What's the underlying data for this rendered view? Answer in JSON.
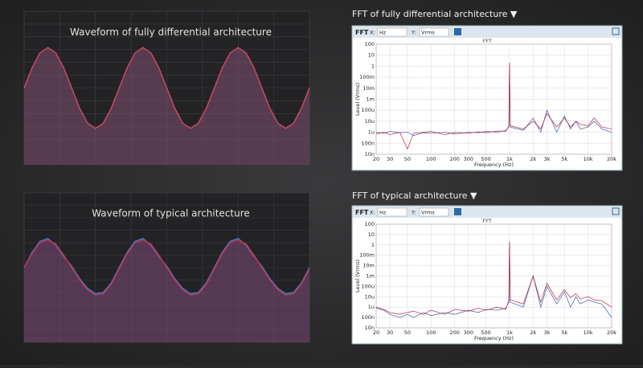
{
  "chart_data": [
    {
      "type": "area",
      "title": "Waveform of fully differential architecture",
      "ylim": [
        -1.9,
        1.9
      ],
      "series": [
        {
          "color": "#3b6fb0",
          "values": [
            0,
            0.5,
            0.87,
            1,
            0.87,
            0.5,
            0,
            -0.5,
            -0.87,
            -1,
            -0.87,
            -0.5,
            0,
            0.5,
            0.87,
            1,
            0.87,
            0.5,
            0,
            -0.5,
            -0.87,
            -1,
            -0.87,
            -0.5,
            0,
            0.5,
            0.87,
            1,
            0.87,
            0.5,
            0,
            -0.5,
            -0.87,
            -1,
            -0.87,
            -0.5,
            0
          ]
        },
        {
          "color": "#d0455a",
          "values": [
            0,
            0.5,
            0.87,
            1,
            0.87,
            0.5,
            0,
            -0.5,
            -0.87,
            -1,
            -0.87,
            -0.5,
            0,
            0.5,
            0.87,
            1,
            0.87,
            0.5,
            0,
            -0.5,
            -0.87,
            -1,
            -0.87,
            -0.5,
            0,
            0.5,
            0.87,
            1,
            0.87,
            0.5,
            0,
            -0.5,
            -0.87,
            -1,
            -0.87,
            -0.5,
            0
          ]
        }
      ]
    },
    {
      "type": "area",
      "title": "Waveform of typical architecture",
      "ylim": [
        -2.7,
        2.7
      ],
      "series": [
        {
          "color": "#3b7fd0",
          "values": [
            0,
            0.55,
            0.95,
            1.05,
            0.8,
            0.4,
            0.05,
            -0.4,
            -0.75,
            -0.95,
            -0.9,
            -0.55,
            0,
            0.55,
            0.95,
            1.05,
            0.8,
            0.4,
            0.05,
            -0.4,
            -0.75,
            -0.95,
            -0.9,
            -0.55,
            0,
            0.55,
            0.95,
            1.05,
            0.8,
            0.4,
            0.05,
            -0.4,
            -0.75,
            -0.95,
            -0.9,
            -0.55,
            0
          ]
        },
        {
          "color": "#c8304a",
          "values": [
            0,
            0.5,
            0.9,
            1,
            0.85,
            0.45,
            0,
            -0.45,
            -0.8,
            -1,
            -0.95,
            -0.6,
            -0.05,
            0.5,
            0.9,
            1,
            0.85,
            0.45,
            0,
            -0.45,
            -0.8,
            -1,
            -0.95,
            -0.6,
            -0.05,
            0.5,
            0.9,
            1,
            0.85,
            0.45,
            0,
            -0.45,
            -0.8,
            -1,
            -0.95,
            -0.6,
            -0.05
          ]
        }
      ]
    },
    {
      "type": "fft",
      "title": "FFT of fully differential architecture ▼",
      "toolbar": [
        "FFT",
        "X:",
        "Hz",
        "Y:",
        "Vrms"
      ],
      "plot_title": "FFT",
      "x_label": "Frequency (Hz)",
      "y_label": "Level (Vrms)",
      "log_x": true,
      "log_y": true,
      "grid": true,
      "xlim": [
        20,
        20000
      ],
      "ylim": [
        1e-08,
        100
      ],
      "xticks": [
        20,
        30,
        50,
        100,
        200,
        300,
        500,
        {
          "value": 1000,
          "label": "1k"
        },
        {
          "value": 2000,
          "label": "2k"
        },
        {
          "value": 3000,
          "label": "3k"
        },
        {
          "value": 5000,
          "label": "5k"
        },
        {
          "value": 10000,
          "label": "10k"
        },
        {
          "value": 20000,
          "label": "20k"
        }
      ],
      "yticks": [
        100,
        10,
        1,
        {
          "value": 0.1,
          "label": "100m"
        },
        {
          "value": 0.01,
          "label": "10m"
        },
        {
          "value": 0.001,
          "label": "1m"
        },
        {
          "value": 0.0001,
          "label": "100u"
        },
        {
          "value": 1e-05,
          "label": "10u"
        },
        {
          "value": 1e-06,
          "label": "1u"
        },
        {
          "value": 1e-07,
          "label": "100n"
        },
        {
          "value": 1e-08,
          "label": "10n"
        }
      ],
      "x": [
        20,
        25,
        30,
        40,
        50,
        60,
        80,
        100,
        150,
        200,
        300,
        400,
        500,
        700,
        900,
        980,
        1000,
        1020,
        1500,
        2000,
        2500,
        3000,
        4000,
        5000,
        6000,
        7000,
        8000,
        10000,
        12000,
        15000,
        20000
      ],
      "series": [
        {
          "color": "#3a5fb0",
          "values": [
            1e-06,
            8e-07,
            1.2e-06,
            9e-07,
            1e-06,
            5e-07,
            9e-07,
            8e-07,
            1e-06,
            7e-07,
            1e-06,
            9e-07,
            1.2e-06,
            1e-06,
            1.5e-06,
            3e-06,
            2,
            3e-06,
            1.5e-06,
            2e-05,
            1e-06,
            0.0001,
            1e-06,
            3e-05,
            2e-06,
            1e-05,
            2e-06,
            3e-06,
            1e-05,
            2e-06,
            1e-06
          ]
        },
        {
          "color": "#c0283c",
          "values": [
            7e-07,
            1e-06,
            6e-07,
            1e-06,
            3e-08,
            8e-07,
            1e-06,
            1.2e-06,
            6e-07,
            1e-06,
            8e-07,
            1.1e-06,
            9e-07,
            1.3e-06,
            1.2e-06,
            4e-06,
            2,
            4e-06,
            2e-06,
            1e-05,
            2e-06,
            5e-05,
            3e-06,
            2e-05,
            3e-06,
            1e-05,
            5e-06,
            4e-06,
            2e-05,
            3e-06,
            2e-06
          ]
        }
      ]
    },
    {
      "type": "fft",
      "title": "FFT of typical architecture ▼",
      "toolbar": [
        "FFT",
        "X:",
        "Hz",
        "Y:",
        "Vrms"
      ],
      "plot_title": "FFT",
      "x_label": "Frequency (Hz)",
      "y_label": "Level (Vrms)",
      "log_x": true,
      "log_y": true,
      "grid": true,
      "xlim": [
        20,
        20000
      ],
      "ylim": [
        1e-08,
        100
      ],
      "xticks": [
        20,
        30,
        50,
        100,
        200,
        300,
        500,
        {
          "value": 1000,
          "label": "1k"
        },
        {
          "value": 2000,
          "label": "2k"
        },
        {
          "value": 3000,
          "label": "3k"
        },
        {
          "value": 5000,
          "label": "5k"
        },
        {
          "value": 10000,
          "label": "10k"
        },
        {
          "value": 20000,
          "label": "20k"
        }
      ],
      "yticks": [
        100,
        10,
        1,
        {
          "value": 0.1,
          "label": "100m"
        },
        {
          "value": 0.01,
          "label": "10m"
        },
        {
          "value": 0.001,
          "label": "1m"
        },
        {
          "value": 0.0001,
          "label": "100u"
        },
        {
          "value": 1e-05,
          "label": "10u"
        },
        {
          "value": 1e-06,
          "label": "1u"
        },
        {
          "value": 1e-07,
          "label": "100n"
        },
        {
          "value": 1e-08,
          "label": "10n"
        }
      ],
      "x": [
        20,
        25,
        30,
        40,
        50,
        60,
        80,
        100,
        150,
        200,
        300,
        400,
        500,
        700,
        900,
        980,
        1000,
        1020,
        1500,
        2000,
        2500,
        3000,
        4000,
        5000,
        6000,
        7000,
        8000,
        10000,
        12000,
        15000,
        20000
      ],
      "series": [
        {
          "color": "#3a5fb0",
          "values": [
            8e-07,
            5e-07,
            2e-07,
            1e-07,
            2e-07,
            1e-07,
            3e-07,
            1.5e-07,
            3e-07,
            2e-07,
            5e-07,
            3e-07,
            6e-07,
            5e-07,
            8e-07,
            3e-06,
            2,
            3e-06,
            1e-06,
            0.001,
            1e-06,
            0.0001,
            2e-06,
            3e-05,
            1e-06,
            1e-05,
            2e-06,
            5e-06,
            3e-06,
            2e-06,
            1e-07
          ]
        },
        {
          "color": "#c0283c",
          "values": [
            1e-06,
            6e-07,
            3e-07,
            2e-07,
            3e-07,
            4e-07,
            2e-07,
            5e-07,
            2e-07,
            6e-07,
            4e-07,
            8e-07,
            5e-07,
            1e-06,
            6e-07,
            5e-06,
            2,
            5e-06,
            2e-06,
            0.001,
            3e-06,
            0.0002,
            5e-06,
            5e-05,
            8e-06,
            2e-05,
            6e-06,
            1e-05,
            5e-06,
            4e-06,
            1e-06
          ]
        }
      ]
    }
  ]
}
